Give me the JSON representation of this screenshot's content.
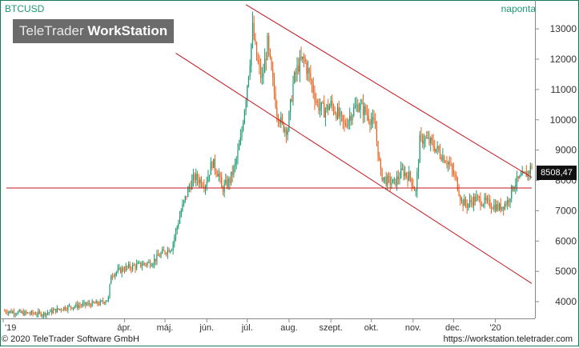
{
  "header": {
    "symbol": "BTCUSD",
    "period": "naponta",
    "brand_light": "TeleTrader ",
    "brand_bold": "WorkStation"
  },
  "footer": {
    "copyright": "© 2020 TeleTrader Software GmbH",
    "url": "https://workstation.teletrader.com"
  },
  "last_price_label": "8508,47",
  "colors": {
    "up": "#1c9a73",
    "down": "#e8621f",
    "channel": "#c4161c",
    "border": "#1a7a5a"
  },
  "chart_data": {
    "type": "candlestick",
    "y_ticks": [
      4000,
      5000,
      6000,
      7000,
      8000,
      9000,
      10000,
      11000,
      12000,
      13000
    ],
    "y_tick_labels": [
      "4000",
      "5000",
      "6000",
      "7000",
      "8000",
      "9000",
      "10000",
      "11000",
      "12000",
      "13000"
    ],
    "ylim": [
      3500,
      13900
    ],
    "x_ticks": [
      {
        "label": "'19",
        "day": 0
      },
      {
        "label": "ápr.",
        "day": 90
      },
      {
        "label": "máj.",
        "day": 120
      },
      {
        "label": "jún.",
        "day": 151
      },
      {
        "label": "júl.",
        "day": 181
      },
      {
        "label": "aug.",
        "day": 212
      },
      {
        "label": "szept.",
        "day": 243
      },
      {
        "label": "okt.",
        "day": 273
      },
      {
        "label": "nov.",
        "day": 304
      },
      {
        "label": "dec.",
        "day": 334
      },
      {
        "label": "'20",
        "day": 365
      }
    ],
    "xlim": [
      0,
      381
    ],
    "price_path": [
      [
        0,
        3700
      ],
      [
        15,
        3620
      ],
      [
        30,
        3600
      ],
      [
        45,
        3800
      ],
      [
        60,
        3900
      ],
      [
        72,
        3950
      ],
      [
        78,
        4100
      ],
      [
        80,
        4900
      ],
      [
        90,
        5100
      ],
      [
        100,
        5200
      ],
      [
        110,
        5300
      ],
      [
        118,
        5600
      ],
      [
        125,
        5800
      ],
      [
        132,
        7000
      ],
      [
        138,
        7800
      ],
      [
        142,
        8100
      ],
      [
        150,
        7900
      ],
      [
        155,
        8600
      ],
      [
        160,
        8200
      ],
      [
        162,
        7700
      ],
      [
        168,
        8000
      ],
      [
        172,
        8500
      ],
      [
        176,
        9300
      ],
      [
        180,
        10800
      ],
      [
        183,
        12000
      ],
      [
        185,
        13000
      ],
      [
        188,
        12000
      ],
      [
        192,
        11300
      ],
      [
        196,
        12500
      ],
      [
        199,
        11500
      ],
      [
        203,
        10300
      ],
      [
        207,
        9800
      ],
      [
        211,
        9700
      ],
      [
        215,
        11200
      ],
      [
        219,
        11800
      ],
      [
        223,
        12000
      ],
      [
        228,
        11300
      ],
      [
        233,
        10500
      ],
      [
        238,
        10300
      ],
      [
        243,
        10500
      ],
      [
        248,
        10200
      ],
      [
        253,
        9800
      ],
      [
        258,
        10200
      ],
      [
        263,
        10500
      ],
      [
        268,
        10300
      ],
      [
        273,
        10000
      ],
      [
        276,
        9700
      ],
      [
        280,
        8200
      ],
      [
        284,
        8000
      ],
      [
        290,
        7900
      ],
      [
        296,
        8300
      ],
      [
        302,
        8100
      ],
      [
        306,
        7600
      ],
      [
        309,
        9300
      ],
      [
        312,
        9400
      ],
      [
        318,
        9200
      ],
      [
        324,
        8900
      ],
      [
        330,
        8600
      ],
      [
        336,
        8000
      ],
      [
        340,
        7300
      ],
      [
        344,
        7200
      ],
      [
        350,
        7400
      ],
      [
        356,
        7300
      ],
      [
        362,
        7200
      ],
      [
        368,
        7100
      ],
      [
        374,
        7300
      ],
      [
        379,
        7900
      ],
      [
        385,
        8100
      ],
      [
        390,
        8300
      ],
      [
        392,
        8500
      ]
    ],
    "overlays": {
      "channel_upper": [
        [
          180,
          13800
        ],
        [
          392,
          8100
        ]
      ],
      "channel_lower": [
        [
          128,
          12200
        ],
        [
          392,
          4600
        ]
      ],
      "horizontal": 7750
    },
    "last_price": 8508.47
  }
}
